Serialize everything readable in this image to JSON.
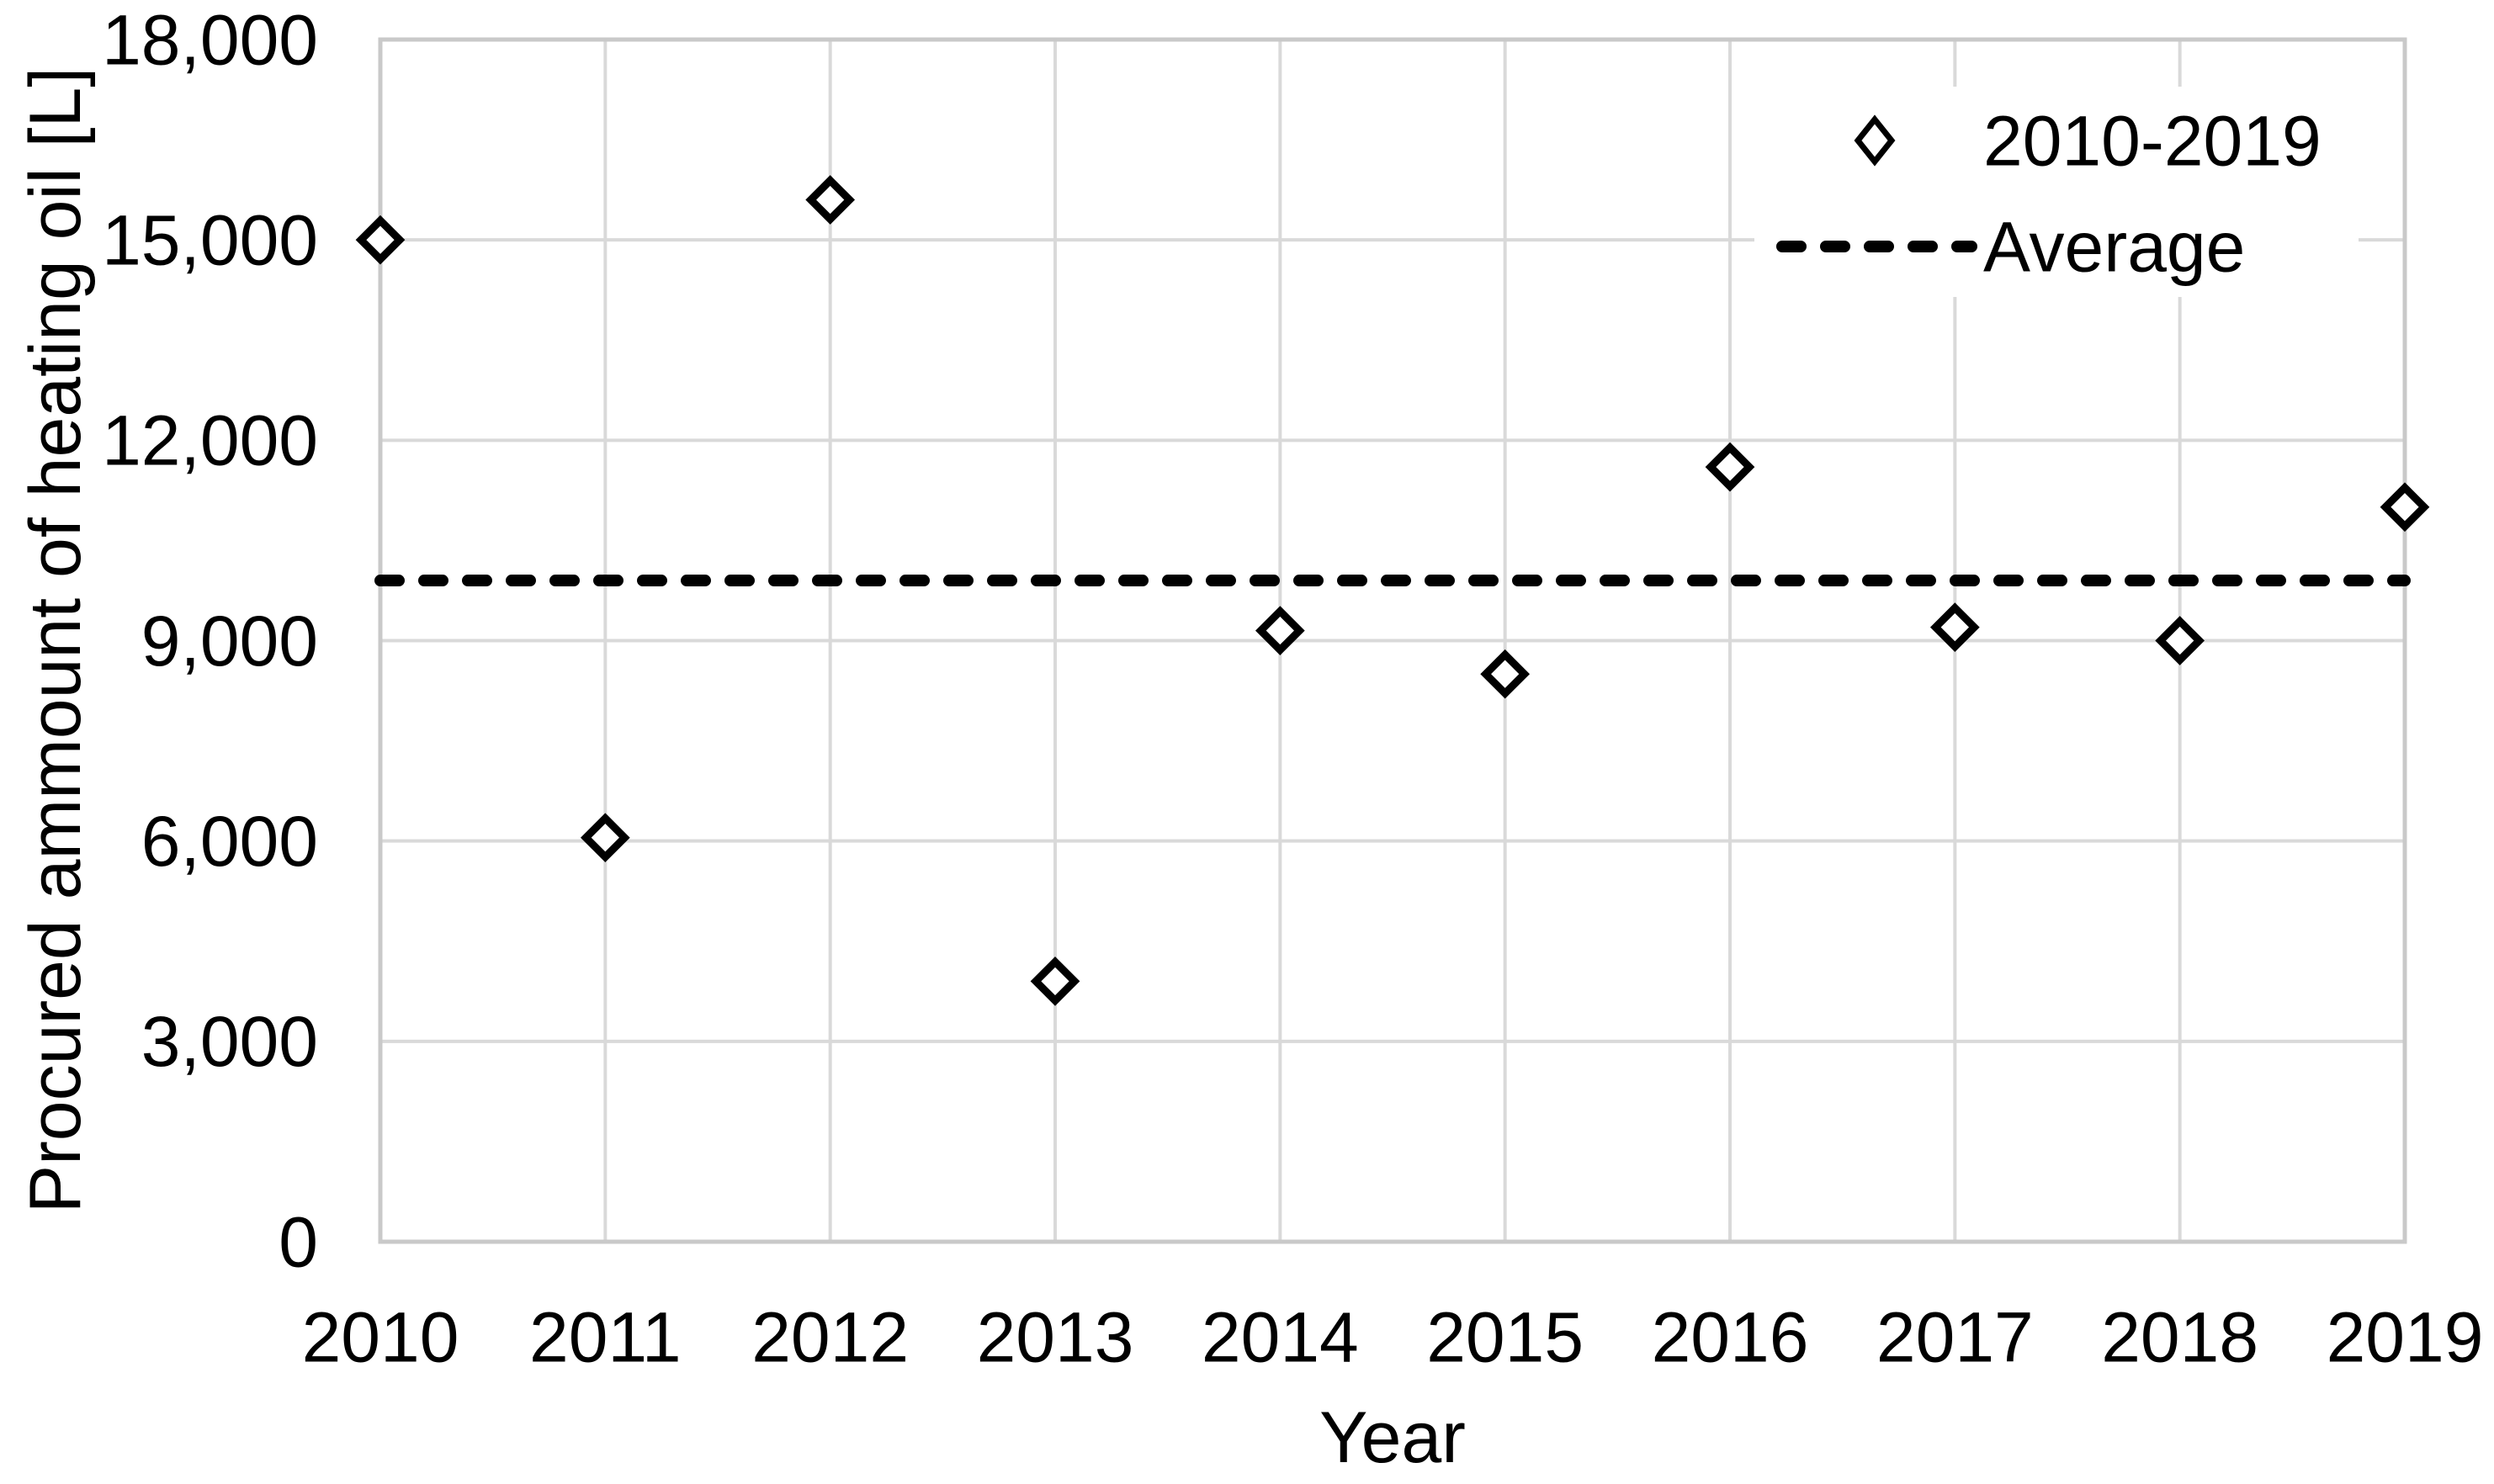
{
  "chart_data": {
    "type": "scatter",
    "title": "",
    "xlabel": "Year",
    "ylabel": "Procured ammount of heating  oil [L]",
    "categories": [
      "2010",
      "2011",
      "2012",
      "2013",
      "2014",
      "2015",
      "2016",
      "2017",
      "2018",
      "2019"
    ],
    "series": [
      {
        "name": "2010-2019",
        "type": "scatter",
        "marker": "open-diamond",
        "values": [
          15000,
          6050,
          15600,
          3900,
          9150,
          8500,
          11600,
          9200,
          9000,
          11000
        ]
      },
      {
        "name": "Average",
        "type": "horizontal-line",
        "style": "dashed",
        "value": 9900
      }
    ],
    "ylim": [
      0,
      18000
    ],
    "ytick_step": 3000,
    "ytick_labels": [
      "0",
      "3,000",
      "6,000",
      "9,000",
      "12,000",
      "15,000",
      "18,000"
    ],
    "grid": true,
    "legend_position": "top-right-inside",
    "colors": {
      "marker": "#000000",
      "average_line": "#000000",
      "gridline": "#d9d9d9",
      "plot_border": "#c9c9c9",
      "text": "#000000",
      "background": "#ffffff"
    }
  }
}
